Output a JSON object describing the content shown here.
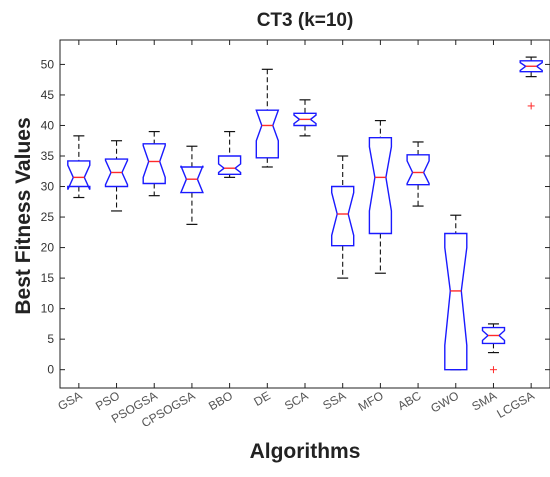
{
  "chart_data": {
    "type": "boxplot",
    "title": "CT3  (k=10)",
    "xlabel": "Algorithms",
    "ylabel": "Best  Fitness  Values",
    "ylim": [
      -3,
      54
    ],
    "yticks": [
      0,
      5,
      10,
      15,
      20,
      25,
      30,
      35,
      40,
      45,
      50
    ],
    "notched": true,
    "box_color": "#1a1aff",
    "median_color": "#ff2a2a",
    "whisker_color": "#111111",
    "categories": [
      "GSA",
      "PSO",
      "PSOGSA",
      "CPSOGSA",
      "BBO",
      "DE",
      "SCA",
      "SSA",
      "MFO",
      "ABC",
      "GWO",
      "SMA",
      "LCGSA"
    ],
    "boxes": [
      {
        "name": "GSA",
        "min": 28.2,
        "q1": 30.0,
        "median": 31.5,
        "q3": 34.2,
        "max": 38.3,
        "notch_low": 29.5,
        "notch_high": 33.5,
        "outliers": []
      },
      {
        "name": "PSO",
        "min": 26.0,
        "q1": 30.0,
        "median": 32.3,
        "q3": 34.5,
        "max": 37.5,
        "notch_low": 30.3,
        "notch_high": 34.3,
        "outliers": []
      },
      {
        "name": "PSOGSA",
        "min": 28.5,
        "q1": 30.5,
        "median": 34.1,
        "q3": 37.0,
        "max": 39.0,
        "notch_low": 31.5,
        "notch_high": 36.7,
        "outliers": []
      },
      {
        "name": "CPSOGSA",
        "min": 23.8,
        "q1": 29.0,
        "median": 31.2,
        "q3": 33.2,
        "max": 36.6,
        "notch_low": 29.0,
        "notch_high": 33.4,
        "outliers": []
      },
      {
        "name": "BBO",
        "min": 31.5,
        "q1": 32.0,
        "median": 33.0,
        "q3": 35.0,
        "max": 39.0,
        "notch_low": 32.3,
        "notch_high": 33.7,
        "outliers": []
      },
      {
        "name": "DE",
        "min": 33.2,
        "q1": 34.7,
        "median": 40.0,
        "q3": 42.5,
        "max": 49.2,
        "notch_low": 37.5,
        "notch_high": 42.5,
        "outliers": []
      },
      {
        "name": "SCA",
        "min": 38.3,
        "q1": 40.0,
        "median": 41.0,
        "q3": 42.0,
        "max": 44.2,
        "notch_low": 40.3,
        "notch_high": 41.7,
        "outliers": []
      },
      {
        "name": "SSA",
        "min": 15.0,
        "q1": 20.3,
        "median": 25.5,
        "q3": 30.0,
        "max": 35.0,
        "notch_low": 22.0,
        "notch_high": 29.0,
        "outliers": []
      },
      {
        "name": "MFO",
        "min": 15.8,
        "q1": 22.3,
        "median": 31.5,
        "q3": 38.0,
        "max": 40.8,
        "notch_low": 26.0,
        "notch_high": 36.5,
        "outliers": []
      },
      {
        "name": "ABC",
        "min": 26.8,
        "q1": 30.3,
        "median": 32.3,
        "q3": 35.2,
        "max": 37.3,
        "notch_low": 30.5,
        "notch_high": 34.2,
        "outliers": []
      },
      {
        "name": "GWO",
        "min": 0.0,
        "q1": 0.0,
        "median": 12.9,
        "q3": 22.3,
        "max": 25.3,
        "notch_low": 4.0,
        "notch_high": 20.0,
        "outliers": []
      },
      {
        "name": "SMA",
        "min": 2.8,
        "q1": 4.3,
        "median": 5.6,
        "q3": 6.9,
        "max": 7.5,
        "notch_low": 4.8,
        "notch_high": 6.4,
        "outliers": [
          0.0
        ]
      },
      {
        "name": "LCGSA",
        "min": 48.0,
        "q1": 48.8,
        "median": 49.7,
        "q3": 50.6,
        "max": 51.2,
        "notch_low": 49.0,
        "notch_high": 50.3,
        "outliers": [
          43.2
        ]
      }
    ]
  }
}
